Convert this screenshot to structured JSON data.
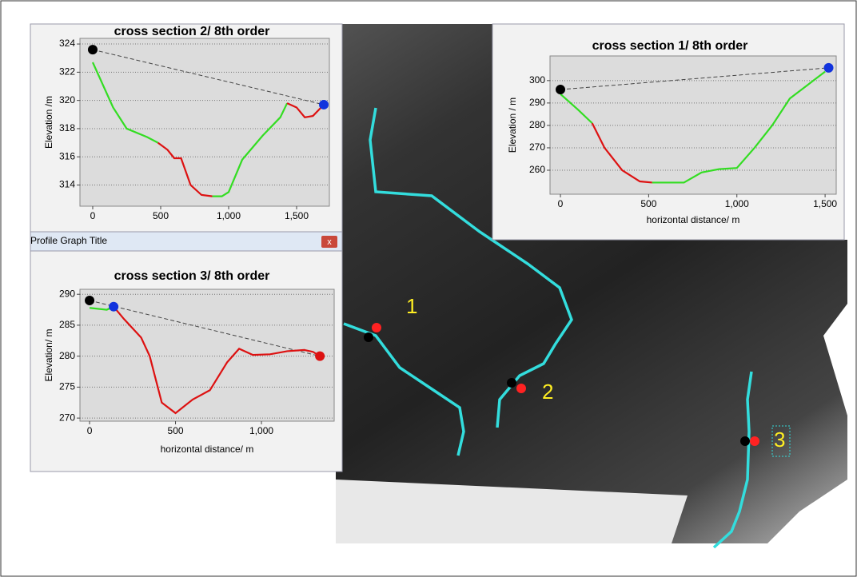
{
  "window_title": "Profile Graph Title",
  "map_labels": [
    "1",
    "2",
    "3"
  ],
  "chart_data": [
    {
      "type": "line",
      "title": "cross section 2/ 8th order",
      "ylabel": "Elevation /m",
      "xlim": [
        -94,
        1741
      ],
      "ylim": [
        312.5,
        324.4
      ],
      "xticks": [
        0,
        500,
        {
          "value": 1000,
          "label": "1,000"
        },
        {
          "value": 1500,
          "label": "1,500"
        }
      ],
      "yticks": [
        314,
        316,
        318,
        320,
        322,
        324
      ],
      "grid": true,
      "series": [
        {
          "color": "#33dd22",
          "x": [
            0,
            150,
            250,
            400,
            480
          ],
          "values": [
            322.7,
            319.5,
            318,
            317.4,
            317
          ]
        },
        {
          "color": "#dd1111",
          "x": [
            480,
            550,
            600,
            650,
            720,
            800,
            880
          ],
          "values": [
            317,
            316.5,
            315.9,
            315.9,
            314,
            313.3,
            313.2
          ]
        },
        {
          "color": "#33dd22",
          "x": [
            880,
            950,
            1000,
            1100,
            1250,
            1380,
            1430
          ],
          "values": [
            313.2,
            313.2,
            313.5,
            315.8,
            317.5,
            318.8,
            319.8
          ]
        },
        {
          "color": "#dd1111",
          "x": [
            1430,
            1500,
            1560,
            1620,
            1680
          ],
          "values": [
            319.8,
            319.5,
            318.8,
            318.9,
            319.5
          ]
        }
      ],
      "points": [
        {
          "x": 0,
          "y": 323.6,
          "color": "#000000"
        },
        {
          "x": 1700,
          "y": 319.7,
          "color": "#1133dd"
        }
      ]
    },
    {
      "type": "line",
      "title": "cross section 1/ 8th order",
      "xlabel": "horizontal distance/ m",
      "ylabel": "Elevation / m",
      "xlim": [
        -59,
        1563
      ],
      "ylim": [
        249.3,
        311
      ],
      "xticks": [
        0,
        500,
        {
          "value": 1000,
          "label": "1,000"
        },
        {
          "value": 1500,
          "label": "1,500"
        }
      ],
      "yticks": [
        260,
        270,
        280,
        290,
        300
      ],
      "grid": true,
      "series": [
        {
          "color": "#33dd22",
          "x": [
            0,
            100,
            180
          ],
          "values": [
            294,
            287,
            281
          ]
        },
        {
          "color": "#dd1111",
          "x": [
            180,
            250,
            350,
            450,
            520
          ],
          "values": [
            281,
            270,
            260,
            255,
            254.5
          ]
        },
        {
          "color": "#33dd22",
          "x": [
            520,
            700,
            800,
            900,
            1000,
            1100,
            1200,
            1300,
            1400,
            1500
          ],
          "values": [
            254.5,
            254.5,
            259,
            260.5,
            261,
            270,
            280,
            292,
            298,
            304
          ]
        }
      ],
      "points": [
        {
          "x": 0,
          "y": 296,
          "color": "#000000"
        },
        {
          "x": 1520,
          "y": 305.7,
          "color": "#1133dd"
        }
      ]
    },
    {
      "type": "line",
      "title": "cross section 3/ 8th order",
      "xlabel": "horizontal distance/ m",
      "ylabel": "Elevation/ m",
      "xlim": [
        -56,
        1423
      ],
      "ylim": [
        269.5,
        290.8
      ],
      "xticks": [
        0,
        500,
        {
          "value": 1000,
          "label": "1,000"
        }
      ],
      "yticks": [
        270,
        275,
        280,
        285,
        290
      ],
      "grid": true,
      "series": [
        {
          "color": "#33dd22",
          "x": [
            0,
            100,
            140
          ],
          "values": [
            287.8,
            287.5,
            288
          ]
        },
        {
          "color": "#dd1111",
          "x": [
            140,
            200,
            300,
            350,
            420,
            500,
            600,
            700,
            800,
            870,
            950,
            1050,
            1150,
            1250,
            1300,
            1340
          ],
          "values": [
            288,
            286,
            283,
            280,
            272.5,
            270.8,
            273,
            274.5,
            279,
            281.2,
            280.2,
            280.3,
            280.8,
            281,
            280.7,
            280
          ]
        }
      ],
      "points": [
        {
          "x": 0,
          "y": 289,
          "color": "#000000"
        },
        {
          "x": 140,
          "y": 288,
          "color": "#1133dd"
        },
        {
          "x": 1340,
          "y": 280,
          "color": "#dd1111"
        }
      ]
    }
  ]
}
